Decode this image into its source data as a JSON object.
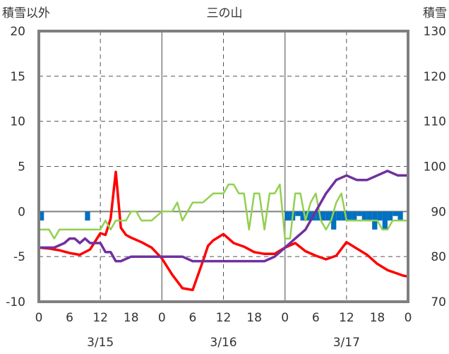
{
  "chart_data": {
    "type": "line",
    "title": "三の山",
    "left_axis_label": "積雪以外",
    "right_axis_label": "積雪",
    "left_ylim": [
      -10,
      20
    ],
    "left_ticks": [
      "20",
      "15",
      "10",
      "5",
      "0",
      "-5",
      "-10"
    ],
    "right_ylim": [
      70,
      130
    ],
    "right_ticks": [
      "130",
      "120",
      "110",
      "100",
      "90",
      "80",
      "70"
    ],
    "x_hour_ticks": [
      "0",
      "6",
      "12",
      "18",
      "0",
      "6",
      "12",
      "18",
      "0",
      "6",
      "12",
      "18",
      "0"
    ],
    "x_date_labels": [
      "3/15",
      "3/16",
      "3/17"
    ],
    "grid": true,
    "series": [
      {
        "key": "temperature",
        "axis": "left",
        "color": "#ff0000",
        "x": [
          0,
          2,
          3,
          4,
          6,
          8,
          10,
          12,
          13,
          14,
          15,
          16,
          17,
          18,
          20,
          22,
          24,
          26,
          28,
          30,
          32,
          33,
          34,
          36,
          38,
          40,
          42,
          44,
          46,
          48,
          50,
          52,
          54,
          56,
          58,
          60,
          62,
          64,
          66,
          68,
          70,
          71,
          72
        ],
        "y": [
          -4,
          -4.1,
          -4.2,
          -4.3,
          -4.6,
          -4.8,
          -4.2,
          -2.4,
          -2.6,
          -0.8,
          4.4,
          -1.8,
          -2.6,
          -2.9,
          -3.4,
          -4,
          -5.2,
          -7,
          -8.5,
          -8.7,
          -5.5,
          -3.8,
          -3.2,
          -2.5,
          -3.5,
          -3.9,
          -4.5,
          -4.7,
          -4.7,
          -4,
          -3.5,
          -4.4,
          -4.9,
          -5.3,
          -4.9,
          -3.4,
          -4.1,
          -4.8,
          -5.8,
          -6.5,
          -6.9,
          -7.1,
          -7.2
        ]
      },
      {
        "key": "humidity",
        "axis": "left",
        "color": "#92d050",
        "x": [
          0,
          2,
          3,
          4,
          6,
          8,
          10,
          12,
          13,
          14,
          15,
          16,
          17,
          18,
          19,
          20,
          22,
          24,
          26,
          27,
          28,
          30,
          32,
          34,
          36,
          37,
          38,
          39,
          40,
          41,
          42,
          43,
          44,
          45,
          46,
          47,
          48,
          49,
          50,
          51,
          52,
          53,
          54,
          55,
          56,
          57,
          58,
          59,
          60,
          61,
          62,
          64,
          66,
          67,
          68,
          69,
          70,
          71,
          72
        ],
        "y": [
          -2,
          -2,
          -3,
          -2,
          -2,
          -2,
          -2,
          -2,
          -1,
          -2,
          -1,
          -1,
          -1,
          0,
          0,
          -1,
          -1,
          0,
          0,
          1,
          -1,
          1,
          1,
          2,
          2,
          3,
          3,
          2,
          2,
          -2,
          2,
          2,
          -2,
          2,
          2,
          3,
          -3,
          -3,
          2,
          2,
          -1,
          1,
          2,
          -1,
          -2,
          -1,
          1,
          2,
          -1,
          -1,
          -1,
          -1,
          -1,
          -2,
          -2,
          -1,
          -1,
          -1,
          -1
        ]
      },
      {
        "key": "snow_depth",
        "axis": "right",
        "color": "#7030a0",
        "x": [
          0,
          3,
          5,
          6,
          7,
          8,
          9,
          10,
          12,
          13,
          14,
          15,
          16,
          18,
          20,
          22,
          24,
          26,
          28,
          30,
          32,
          34,
          36,
          38,
          40,
          42,
          44,
          46,
          48,
          50,
          52,
          54,
          56,
          58,
          60,
          62,
          64,
          66,
          68,
          70,
          72
        ],
        "y": [
          82,
          82,
          83,
          84,
          84,
          83,
          84,
          83,
          83,
          81,
          81,
          79,
          79,
          80,
          80,
          80,
          80,
          80,
          80,
          79,
          79,
          79,
          79,
          79,
          79,
          79,
          79,
          80,
          82,
          84,
          86,
          90,
          94,
          97,
          98,
          97,
          97,
          98,
          99,
          98,
          98
        ]
      }
    ],
    "bars": {
      "key": "precipitation",
      "axis": "left",
      "color": "#0070c0",
      "x": [
        0.5,
        9.5,
        48.5,
        49.5,
        50.5,
        51.5,
        52.5,
        53.5,
        54.5,
        55.5,
        56.5,
        57.5,
        58.5,
        59.5,
        60.5,
        61.5,
        62.5,
        63.5,
        64.5,
        65.5,
        66.5,
        67.5,
        68.5,
        69.5,
        70.5
      ],
      "values": [
        -1,
        -1,
        -1,
        -1,
        -0.5,
        -1,
        -1,
        -1,
        -1,
        -1,
        -1,
        -2,
        -1,
        -1,
        -1,
        -1,
        -0.5,
        -1,
        -1,
        -2,
        -1,
        -2,
        -1,
        -0.5,
        -1
      ]
    }
  }
}
